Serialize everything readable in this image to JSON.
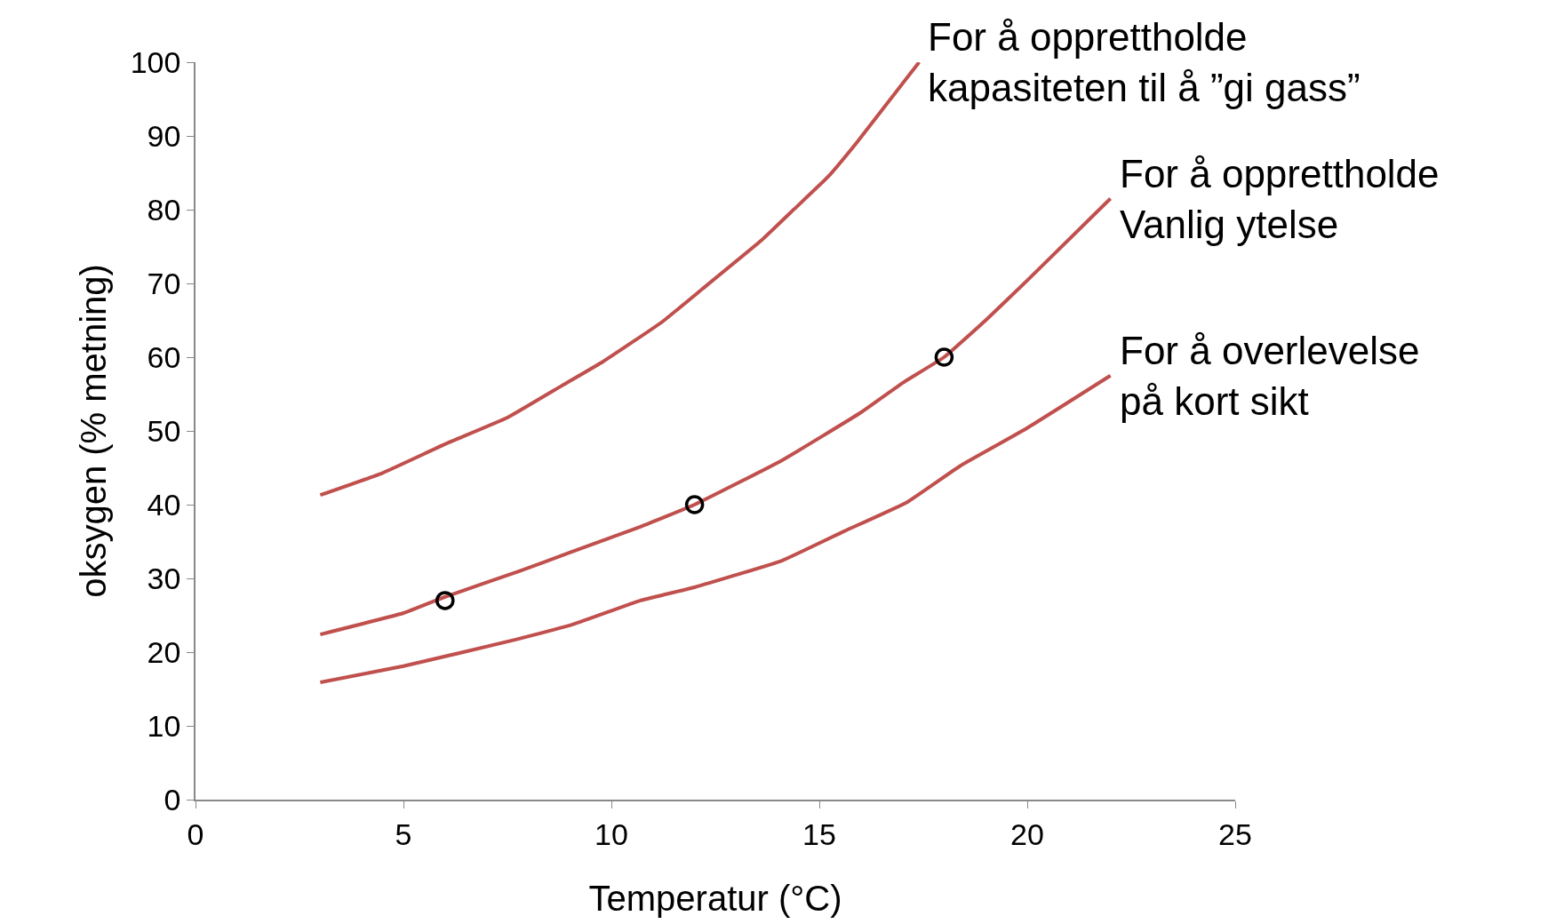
{
  "chart_data": {
    "type": "line",
    "xlabel": "Temperatur (°C)",
    "ylabel": "oksygen (% metning)",
    "xlim": [
      0,
      25
    ],
    "xticks": [
      0,
      5,
      10,
      15,
      20,
      25
    ],
    "ylim": [
      0,
      100
    ],
    "yticks": [
      0,
      10,
      20,
      30,
      40,
      50,
      60,
      70,
      80,
      90,
      100
    ],
    "legend": false,
    "marker": "none",
    "line_style": "solid",
    "series": [
      {
        "name": "For å opprettholde\nkapasiteten til å ”gi gass”",
        "color": "#c0504d",
        "x": [
          3,
          4.5,
          6.0,
          7.5,
          8.8,
          9.8,
          11.2,
          12.2,
          13.6,
          14.4,
          15.2,
          15.9,
          17.4
        ],
        "values": [
          41.3,
          44.3,
          48.2,
          51.8,
          56.1,
          59.4,
          64.7,
          69.3,
          75.8,
          80.1,
          84.4,
          89.1,
          100
        ]
      },
      {
        "name": "For å opprettholde\nVanlig ytelse",
        "color": "#c0504d",
        "x": [
          3,
          5,
          6,
          7.8,
          9,
          10.7,
          12,
          14.1,
          16,
          17,
          18,
          19,
          20,
          22
        ],
        "values": [
          22.4,
          25.3,
          27.5,
          31,
          33.5,
          37,
          40,
          46,
          52.5,
          56.5,
          60,
          65,
          70.4,
          81.5
        ]
      },
      {
        "name": "For å overlevelse\npå kort sikt",
        "color": "#c0504d",
        "x": [
          3,
          5,
          7.7,
          9.1,
          10.7,
          12,
          14.1,
          15.6,
          17.1,
          18.4,
          20,
          22
        ],
        "values": [
          15.9,
          18.1,
          21.7,
          23.8,
          27.0,
          28.8,
          32.4,
          36.4,
          40.3,
          45.3,
          50.4,
          57.5
        ]
      },
      {
        "type": "scatter",
        "marker": "circle",
        "color": "#000000",
        "x": [
          6,
          12,
          18
        ],
        "values": [
          27,
          40,
          60
        ]
      }
    ]
  }
}
